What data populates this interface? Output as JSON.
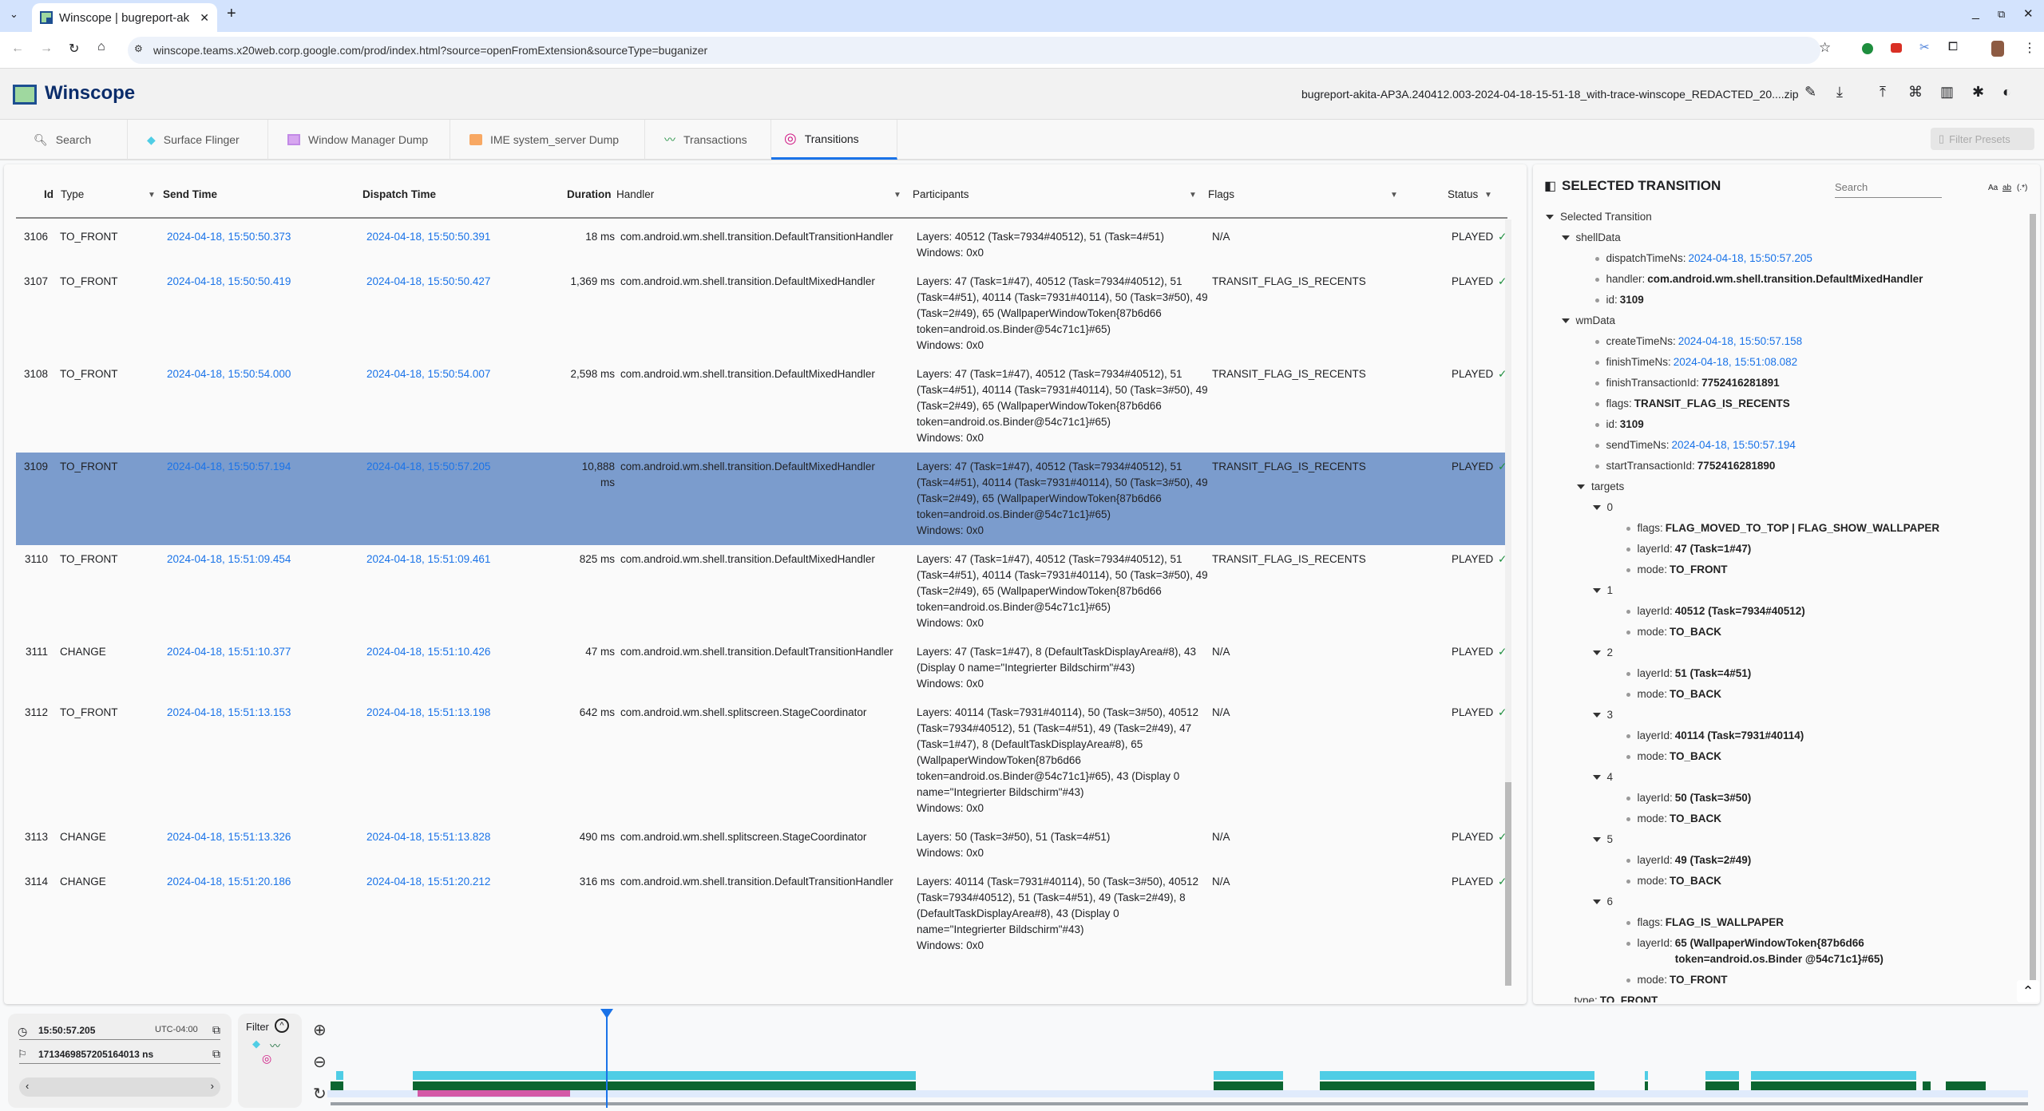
{
  "browser": {
    "tab_title": "Winscope | bugreport-ak",
    "url": "winscope.teams.x20web.corp.google.com/prod/index.html?source=openFromExtension&sourceType=buganizer"
  },
  "app": {
    "title": "Winscope",
    "filename": "bugreport-akita-AP3A.240412.003-2024-04-18-15-51-18_with-trace-winscope_REDACTED_20....zip",
    "filter_presets": "Filter Presets"
  },
  "tabs": [
    {
      "label": "Search",
      "icon": "search-icon"
    },
    {
      "label": "Surface Flinger",
      "icon": "layers-icon"
    },
    {
      "label": "Window Manager Dump",
      "icon": "window-icon"
    },
    {
      "label": "IME system_server Dump",
      "icon": "keyboard-icon"
    },
    {
      "label": "Transactions",
      "icon": "timeline-icon"
    },
    {
      "label": "Transitions",
      "icon": "transitions-icon",
      "active": true
    }
  ],
  "table": {
    "headers": {
      "id": "Id",
      "type": "Type",
      "send": "Send Time",
      "dispatch": "Dispatch Time",
      "duration": "Duration",
      "handler": "Handler",
      "participants": "Participants",
      "flags": "Flags",
      "status": "Status"
    },
    "rows": [
      {
        "id": "3106",
        "type": "TO_FRONT",
        "send": "2024-04-18, 15:50:50.373",
        "dispatch": "2024-04-18, 15:50:50.391",
        "duration": "18 ms",
        "handler": "com.android.wm.shell.transition.DefaultTransitionHandler",
        "layers": "Layers: 40512 (Task=7934#40512), 51 (Task=4#51)",
        "windows": "Windows: 0x0",
        "flags": "N/A",
        "status": "PLAYED"
      },
      {
        "id": "3107",
        "type": "TO_FRONT",
        "send": "2024-04-18, 15:50:50.419",
        "dispatch": "2024-04-18, 15:50:50.427",
        "duration": "1,369 ms",
        "handler": "com.android.wm.shell.transition.DefaultMixedHandler",
        "layers": "Layers: 47 (Task=1#47), 40512 (Task=7934#40512), 51 (Task=4#51), 40114 (Task=7931#40114), 50 (Task=3#50), 49 (Task=2#49), 65 (WallpaperWindowToken{87b6d66 token=android.os.Binder@54c71c1}#65)",
        "windows": "Windows: 0x0",
        "flags": "TRANSIT_FLAG_IS_RECENTS",
        "status": "PLAYED"
      },
      {
        "id": "3108",
        "type": "TO_FRONT",
        "send": "2024-04-18, 15:50:54.000",
        "dispatch": "2024-04-18, 15:50:54.007",
        "duration": "2,598 ms",
        "handler": "com.android.wm.shell.transition.DefaultMixedHandler",
        "layers": "Layers: 47 (Task=1#47), 40512 (Task=7934#40512), 51 (Task=4#51), 40114 (Task=7931#40114), 50 (Task=3#50), 49 (Task=2#49), 65 (WallpaperWindowToken{87b6d66 token=android.os.Binder@54c71c1}#65)",
        "windows": "Windows: 0x0",
        "flags": "TRANSIT_FLAG_IS_RECENTS",
        "status": "PLAYED"
      },
      {
        "id": "3109",
        "type": "TO_FRONT",
        "send": "2024-04-18, 15:50:57.194",
        "dispatch": "2024-04-18, 15:50:57.205",
        "duration": "10,888 ms",
        "handler": "com.android.wm.shell.transition.DefaultMixedHandler",
        "layers": "Layers: 47 (Task=1#47), 40512 (Task=7934#40512), 51 (Task=4#51), 40114 (Task=7931#40114), 50 (Task=3#50), 49 (Task=2#49), 65 (WallpaperWindowToken{87b6d66 token=android.os.Binder@54c71c1}#65)",
        "windows": "Windows: 0x0",
        "flags": "TRANSIT_FLAG_IS_RECENTS",
        "status": "PLAYED",
        "selected": true
      },
      {
        "id": "3110",
        "type": "TO_FRONT",
        "send": "2024-04-18, 15:51:09.454",
        "dispatch": "2024-04-18, 15:51:09.461",
        "duration": "825 ms",
        "handler": "com.android.wm.shell.transition.DefaultMixedHandler",
        "layers": "Layers: 47 (Task=1#47), 40512 (Task=7934#40512), 51 (Task=4#51), 40114 (Task=7931#40114), 50 (Task=3#50), 49 (Task=2#49), 65 (WallpaperWindowToken{87b6d66 token=android.os.Binder@54c71c1}#65)",
        "windows": "Windows: 0x0",
        "flags": "TRANSIT_FLAG_IS_RECENTS",
        "status": "PLAYED"
      },
      {
        "id": "3111",
        "type": "CHANGE",
        "send": "2024-04-18, 15:51:10.377",
        "dispatch": "2024-04-18, 15:51:10.426",
        "duration": "47 ms",
        "handler": "com.android.wm.shell.transition.DefaultTransitionHandler",
        "layers": "Layers: 47 (Task=1#47), 8 (DefaultTaskDisplayArea#8), 43 (Display 0 name=\"Integrierter Bildschirm\"#43)",
        "windows": "Windows: 0x0",
        "flags": "N/A",
        "status": "PLAYED"
      },
      {
        "id": "3112",
        "type": "TO_FRONT",
        "send": "2024-04-18, 15:51:13.153",
        "dispatch": "2024-04-18, 15:51:13.198",
        "duration": "642 ms",
        "handler": "com.android.wm.shell.splitscreen.StageCoordinator",
        "layers": "Layers: 40114 (Task=7931#40114), 50 (Task=3#50), 40512 (Task=7934#40512), 51 (Task=4#51), 49 (Task=2#49), 47 (Task=1#47), 8 (DefaultTaskDisplayArea#8), 65 (WallpaperWindowToken{87b6d66 token=android.os.Binder@54c71c1}#65), 43 (Display 0 name=\"Integrierter Bildschirm\"#43)",
        "windows": "Windows: 0x0",
        "flags": "N/A",
        "status": "PLAYED"
      },
      {
        "id": "3113",
        "type": "CHANGE",
        "send": "2024-04-18, 15:51:13.326",
        "dispatch": "2024-04-18, 15:51:13.828",
        "duration": "490 ms",
        "handler": "com.android.wm.shell.splitscreen.StageCoordinator",
        "layers": "Layers: 50 (Task=3#50), 51 (Task=4#51)",
        "windows": "Windows: 0x0",
        "flags": "N/A",
        "status": "PLAYED"
      },
      {
        "id": "3114",
        "type": "CHANGE",
        "send": "2024-04-18, 15:51:20.186",
        "dispatch": "2024-04-18, 15:51:20.212",
        "duration": "316 ms",
        "handler": "com.android.wm.shell.transition.DefaultTransitionHandler",
        "layers": "Layers: 40114 (Task=7931#40114), 50 (Task=3#50), 40512 (Task=7934#40512), 51 (Task=4#51), 49 (Task=2#49), 8 (DefaultTaskDisplayArea#8), 43 (Display 0 name=\"Integrierter Bildschirm\"#43)",
        "windows": "Windows: 0x0",
        "flags": "N/A",
        "status": "PLAYED"
      }
    ]
  },
  "details": {
    "title": "SELECTED TRANSITION",
    "search_placeholder": "Search",
    "opt_case": "Aa",
    "opt_word": "ab",
    "opt_regex": "(.*)",
    "tree": [
      {
        "d": 0,
        "node": true,
        "k": "Selected Transition"
      },
      {
        "d": 1,
        "node": true,
        "k": "shellData"
      },
      {
        "d": 2,
        "k": "dispatchTimeNs:",
        "v": "2024-04-18, 15:50:57.205",
        "link": true
      },
      {
        "d": 2,
        "k": "handler:",
        "v": "com.android.wm.shell.transition.DefaultMixedHandler"
      },
      {
        "d": 2,
        "k": "id:",
        "v": "3109"
      },
      {
        "d": 1,
        "node": true,
        "k": "wmData"
      },
      {
        "d": 2,
        "k": "createTimeNs:",
        "v": "2024-04-18, 15:50:57.158",
        "link": true
      },
      {
        "d": 2,
        "k": "finishTimeNs:",
        "v": "2024-04-18, 15:51:08.082",
        "link": true
      },
      {
        "d": 2,
        "k": "finishTransactionId:",
        "v": "7752416281891"
      },
      {
        "d": 2,
        "k": "flags:",
        "v": "TRANSIT_FLAG_IS_RECENTS"
      },
      {
        "d": 2,
        "k": "id:",
        "v": "3109"
      },
      {
        "d": 2,
        "k": "sendTimeNs:",
        "v": "2024-04-18, 15:50:57.194",
        "link": true
      },
      {
        "d": 2,
        "k": "startTransactionId:",
        "v": "7752416281890"
      },
      {
        "d": 2,
        "node": true,
        "k": "targets"
      },
      {
        "d": 3,
        "node": true,
        "k": "0"
      },
      {
        "d": 4,
        "k": "flags:",
        "v": "FLAG_MOVED_TO_TOP | FLAG_SHOW_WALLPAPER"
      },
      {
        "d": 4,
        "k": "layerId:",
        "v": "47 (Task=1#47)"
      },
      {
        "d": 4,
        "k": "mode:",
        "v": "TO_FRONT"
      },
      {
        "d": 3,
        "node": true,
        "k": "1"
      },
      {
        "d": 4,
        "k": "layerId:",
        "v": "40512 (Task=7934#40512)"
      },
      {
        "d": 4,
        "k": "mode:",
        "v": "TO_BACK"
      },
      {
        "d": 3,
        "node": true,
        "k": "2"
      },
      {
        "d": 4,
        "k": "layerId:",
        "v": "51 (Task=4#51)"
      },
      {
        "d": 4,
        "k": "mode:",
        "v": "TO_BACK"
      },
      {
        "d": 3,
        "node": true,
        "k": "3"
      },
      {
        "d": 4,
        "k": "layerId:",
        "v": "40114 (Task=7931#40114)"
      },
      {
        "d": 4,
        "k": "mode:",
        "v": "TO_BACK"
      },
      {
        "d": 3,
        "node": true,
        "k": "4"
      },
      {
        "d": 4,
        "k": "layerId:",
        "v": "50 (Task=3#50)"
      },
      {
        "d": 4,
        "k": "mode:",
        "v": "TO_BACK"
      },
      {
        "d": 3,
        "node": true,
        "k": "5"
      },
      {
        "d": 4,
        "k": "layerId:",
        "v": "49 (Task=2#49)"
      },
      {
        "d": 4,
        "k": "mode:",
        "v": "TO_BACK"
      },
      {
        "d": 3,
        "node": true,
        "k": "6"
      },
      {
        "d": 4,
        "k": "flags:",
        "v": "FLAG_IS_WALLPAPER"
      },
      {
        "d": 4,
        "k": "layerId:",
        "v": "65 (WallpaperWindowToken{87b6d66 token=android.os.Binder @54c71c1}#65)",
        "wrap": true
      },
      {
        "d": 4,
        "k": "mode:",
        "v": "TO_FRONT"
      },
      {
        "d": 1,
        "k": "type:",
        "v": "TO_FRONT",
        "plain": true
      }
    ]
  },
  "timeline": {
    "time": "15:50:57.205",
    "timezone": "UTC-04:00",
    "ns": "1713469857205164013 ns",
    "filter_label": "Filter"
  },
  "colors": {
    "accent": "#1a73e8",
    "selected_row": "#7b9ccd",
    "sf_track": "#4fcde5",
    "transactions_track": "#0c6530",
    "transitions_track": "#d459a7",
    "played": "#1e8e3e"
  }
}
